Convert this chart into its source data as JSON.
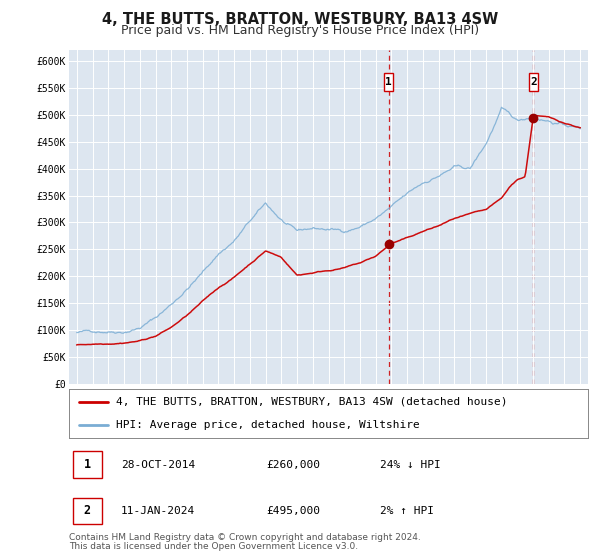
{
  "title": "4, THE BUTTS, BRATTON, WESTBURY, BA13 4SW",
  "subtitle": "Price paid vs. HM Land Registry's House Price Index (HPI)",
  "xlim": [
    1994.5,
    2027.5
  ],
  "ylim": [
    0,
    620000
  ],
  "yticks": [
    0,
    50000,
    100000,
    150000,
    200000,
    250000,
    300000,
    350000,
    400000,
    450000,
    500000,
    550000,
    600000
  ],
  "ytick_labels": [
    "£0",
    "£50K",
    "£100K",
    "£150K",
    "£200K",
    "£250K",
    "£300K",
    "£350K",
    "£400K",
    "£450K",
    "£500K",
    "£550K",
    "£600K"
  ],
  "xticks": [
    1995,
    1996,
    1997,
    1998,
    1999,
    2000,
    2001,
    2002,
    2003,
    2004,
    2005,
    2006,
    2007,
    2008,
    2009,
    2010,
    2011,
    2012,
    2013,
    2014,
    2015,
    2016,
    2017,
    2018,
    2019,
    2020,
    2021,
    2022,
    2023,
    2024,
    2025,
    2026,
    2027
  ],
  "background_color": "#ffffff",
  "plot_bg_color": "#dde6f0",
  "grid_color": "#ffffff",
  "red_line_color": "#cc0000",
  "blue_line_color": "#7aadd4",
  "marker_color": "#990000",
  "vline_color": "#cc0000",
  "sale1_x": 2014.83,
  "sale1_y": 260000,
  "sale2_x": 2024.03,
  "sale2_y": 495000,
  "legend_label_red": "4, THE BUTTS, BRATTON, WESTBURY, BA13 4SW (detached house)",
  "legend_label_blue": "HPI: Average price, detached house, Wiltshire",
  "table_row1": [
    "1",
    "28-OCT-2014",
    "£260,000",
    "24% ↓ HPI"
  ],
  "table_row2": [
    "2",
    "11-JAN-2024",
    "£495,000",
    "2% ↑ HPI"
  ],
  "footnote1": "Contains HM Land Registry data © Crown copyright and database right 2024.",
  "footnote2": "This data is licensed under the Open Government Licence v3.0.",
  "title_fontsize": 10.5,
  "subtitle_fontsize": 9,
  "tick_fontsize": 7,
  "legend_fontsize": 8,
  "table_fontsize": 8,
  "footnote_fontsize": 6.5
}
